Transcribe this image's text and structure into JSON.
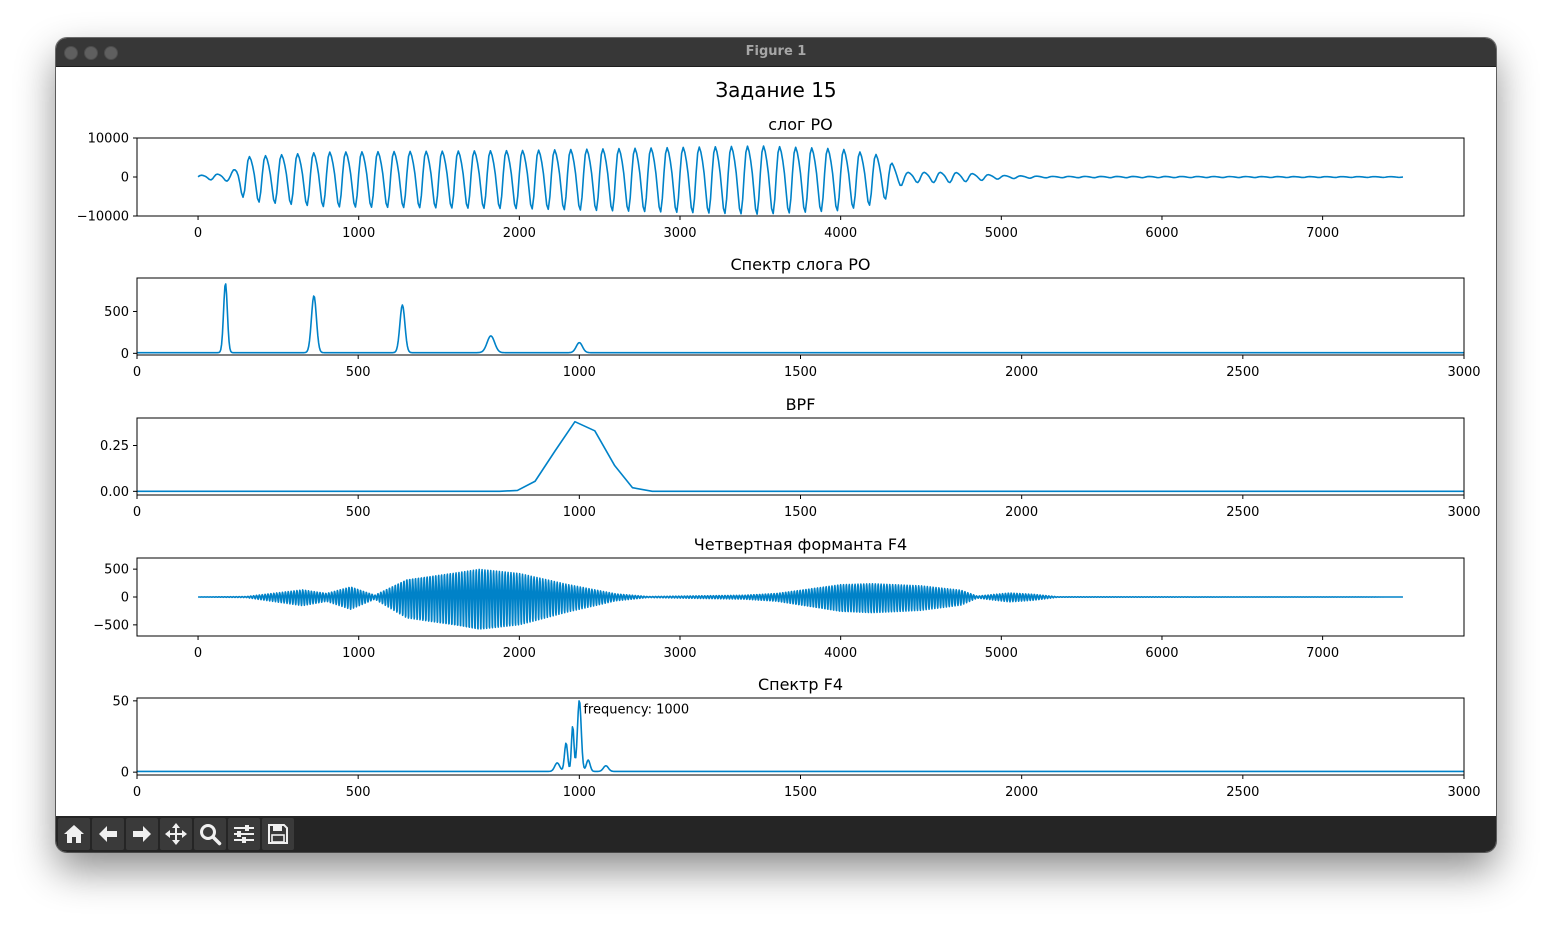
{
  "window": {
    "title": "Figure 1"
  },
  "figure": {
    "suptitle": "Задание 15"
  },
  "toolbar": {
    "buttons": [
      {
        "name": "home-button",
        "icon": "home-icon"
      },
      {
        "name": "back-button",
        "icon": "arrow-left-icon"
      },
      {
        "name": "forward-button",
        "icon": "arrow-right-icon"
      },
      {
        "name": "pan-button",
        "icon": "move-icon"
      },
      {
        "name": "zoom-button",
        "icon": "search-icon"
      },
      {
        "name": "configure-subplots-button",
        "icon": "sliders-icon"
      },
      {
        "name": "save-button",
        "icon": "save-icon"
      }
    ]
  },
  "colors": {
    "line": "#0082c8",
    "axes": "#000000",
    "background": "#ffffff"
  },
  "chart_data": [
    {
      "type": "line",
      "title": "слог РО",
      "xlim": [
        -380,
        7880
      ],
      "ylim": [
        -10000,
        10000
      ],
      "xticks": [
        0,
        1000,
        2000,
        3000,
        4000,
        5000,
        6000,
        7000
      ],
      "yticks": [
        -10000,
        0,
        10000
      ],
      "ytick_labels": [
        "−10000",
        "0",
        "10000"
      ],
      "signal": {
        "kind": "oscillation",
        "x_start": 0,
        "x_end": 7500,
        "period": 100,
        "envelope": [
          [
            0,
            500
          ],
          [
            200,
            1200
          ],
          [
            300,
            6500
          ],
          [
            800,
            8000
          ],
          [
            2000,
            8500
          ],
          [
            3500,
            10000
          ],
          [
            4000,
            9000
          ],
          [
            4250,
            7000
          ],
          [
            4400,
            1500
          ],
          [
            4700,
            1500
          ],
          [
            5000,
            500
          ],
          [
            5300,
            200
          ],
          [
            7500,
            100
          ]
        ]
      }
    },
    {
      "type": "line",
      "title": "Спектр слога РО",
      "xlim": [
        0,
        3000
      ],
      "ylim": [
        -20,
        900
      ],
      "xticks": [
        0,
        500,
        1000,
        1500,
        2000,
        2500,
        3000
      ],
      "yticks": [
        0,
        500
      ],
      "baseline": 8,
      "peaks": [
        {
          "x": 200,
          "y": 830,
          "width": 6
        },
        {
          "x": 400,
          "y": 680,
          "width": 8
        },
        {
          "x": 600,
          "y": 570,
          "width": 8
        },
        {
          "x": 800,
          "y": 200,
          "width": 12
        },
        {
          "x": 1000,
          "y": 120,
          "width": 10
        }
      ]
    },
    {
      "type": "line",
      "title": "BPF",
      "xlim": [
        0,
        3000
      ],
      "ylim": [
        -0.02,
        0.4
      ],
      "xticks": [
        0,
        500,
        1000,
        1500,
        2000,
        2500,
        3000
      ],
      "yticks": [
        0,
        0.25
      ],
      "ytick_labels": [
        "0.00",
        "0.25"
      ],
      "x": [
        0,
        820,
        860,
        900,
        945,
        990,
        1035,
        1080,
        1120,
        1165,
        3000
      ],
      "y": [
        0,
        0,
        0.005,
        0.055,
        0.22,
        0.38,
        0.33,
        0.14,
        0.02,
        0,
        0
      ]
    },
    {
      "type": "line",
      "title": "Четвертная форманта F4",
      "xlim": [
        -380,
        7880
      ],
      "ylim": [
        -700,
        700
      ],
      "xticks": [
        0,
        1000,
        2000,
        3000,
        4000,
        5000,
        6000,
        7000
      ],
      "yticks": [
        -500,
        0,
        500
      ],
      "ytick_labels": [
        "−500",
        "0",
        "500"
      ],
      "signal": {
        "kind": "oscillation",
        "x_start": 0,
        "x_end": 7500,
        "period": 18,
        "envelope": [
          [
            0,
            0
          ],
          [
            300,
            10
          ],
          [
            650,
            160
          ],
          [
            800,
            80
          ],
          [
            950,
            230
          ],
          [
            1100,
            40
          ],
          [
            1300,
            400
          ],
          [
            1600,
            550
          ],
          [
            1750,
            630
          ],
          [
            2000,
            530
          ],
          [
            2300,
            280
          ],
          [
            2600,
            70
          ],
          [
            2800,
            10
          ],
          [
            3200,
            30
          ],
          [
            3400,
            40
          ],
          [
            3600,
            80
          ],
          [
            4000,
            280
          ],
          [
            4200,
            300
          ],
          [
            4500,
            250
          ],
          [
            4750,
            150
          ],
          [
            4850,
            20
          ],
          [
            5050,
            90
          ],
          [
            5200,
            60
          ],
          [
            5350,
            5
          ],
          [
            7500,
            0
          ]
        ]
      }
    },
    {
      "type": "line",
      "title": "Спектр F4",
      "xlim": [
        0,
        3000
      ],
      "ylim": [
        -2,
        52
      ],
      "xticks": [
        0,
        500,
        1000,
        1500,
        2000,
        2500,
        3000
      ],
      "yticks": [
        0,
        50
      ],
      "baseline": 0.5,
      "peaks": [
        {
          "x": 1000,
          "y": 50,
          "width": 6
        },
        {
          "x": 985,
          "y": 32,
          "width": 4
        },
        {
          "x": 970,
          "y": 20,
          "width": 5
        },
        {
          "x": 950,
          "y": 6,
          "width": 8
        },
        {
          "x": 1020,
          "y": 8,
          "width": 6
        },
        {
          "x": 1060,
          "y": 4,
          "width": 8
        }
      ],
      "annotation": {
        "x": 1000,
        "y": 44,
        "text": "frequency: 1000"
      }
    }
  ]
}
